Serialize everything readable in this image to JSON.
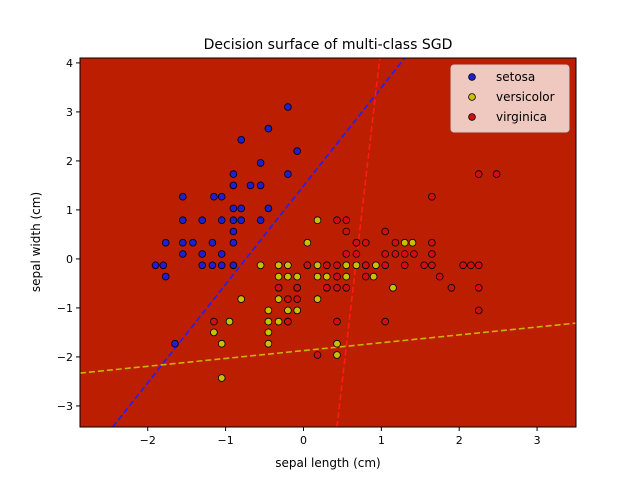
{
  "chart_data": {
    "type": "scatter",
    "title": "Decision surface of multi-class SGD",
    "xlabel": "sepal length (cm)",
    "ylabel": "sepal width (cm)",
    "xlim": [
      -2.87,
      3.5
    ],
    "ylim": [
      -3.43,
      4.1
    ],
    "xticks": [
      -2,
      -1,
      0,
      1,
      2,
      3
    ],
    "yticks": [
      -3,
      -2,
      -1,
      0,
      1,
      2,
      3,
      4
    ],
    "grid": false,
    "legend_position": "top-right",
    "region_colors": {
      "setosa": "#3b8fde",
      "versicolor": "#fca50a",
      "virginica": "#bb1e00"
    },
    "boundary_lines": [
      {
        "series": "setosa",
        "color": "#1f1fff",
        "points": [
          [
            -2.45,
            -3.43
          ],
          [
            1.3,
            4.1
          ]
        ]
      },
      {
        "series": "versicolor",
        "color": "#c8b400",
        "points": [
          [
            -2.87,
            -2.33
          ],
          [
            3.5,
            -1.31
          ]
        ]
      },
      {
        "series": "virginica",
        "color": "#ff1a1a",
        "points": [
          [
            0.43,
            -3.43
          ],
          [
            0.98,
            4.1
          ]
        ]
      }
    ],
    "series": [
      {
        "name": "setosa",
        "color": "#1f1fd0",
        "points": [
          [
            -1.9,
            -0.13
          ],
          [
            -1.8,
            -0.13
          ],
          [
            -1.77,
            0.33
          ],
          [
            -1.77,
            -0.36
          ],
          [
            -1.65,
            -1.73
          ],
          [
            -1.55,
            1.27
          ],
          [
            -1.55,
            0.79
          ],
          [
            -1.55,
            0.33
          ],
          [
            -1.55,
            0.1
          ],
          [
            -1.42,
            0.33
          ],
          [
            -1.3,
            0.79
          ],
          [
            -1.3,
            0.1
          ],
          [
            -1.3,
            -0.13
          ],
          [
            -1.17,
            0.33
          ],
          [
            -1.17,
            -0.13
          ],
          [
            -1.15,
            1.27
          ],
          [
            -1.05,
            1.27
          ],
          [
            -1.05,
            0.79
          ],
          [
            -1.05,
            0.1
          ],
          [
            -1.05,
            -0.13
          ],
          [
            -0.9,
            1.5
          ],
          [
            -0.9,
            1.03
          ],
          [
            -0.9,
            0.79
          ],
          [
            -0.9,
            0.56
          ],
          [
            -0.9,
            0.33
          ],
          [
            -0.9,
            -0.13
          ],
          [
            -0.9,
            1.73
          ],
          [
            -0.8,
            2.43
          ],
          [
            -0.8,
            1.03
          ],
          [
            -0.8,
            0.79
          ],
          [
            -0.68,
            1.5
          ],
          [
            -0.55,
            1.96
          ],
          [
            -0.55,
            1.5
          ],
          [
            -0.55,
            0.79
          ],
          [
            -0.45,
            2.66
          ],
          [
            -0.45,
            1.03
          ],
          [
            -0.2,
            3.1
          ],
          [
            -0.2,
            1.73
          ],
          [
            -0.08,
            2.2
          ]
        ]
      },
      {
        "name": "versicolor",
        "color": "#c8c000",
        "points": [
          [
            -1.15,
            -1.5
          ],
          [
            -1.05,
            -1.73
          ],
          [
            -1.05,
            -2.43
          ],
          [
            -0.95,
            -1.28
          ],
          [
            -0.8,
            -0.82
          ],
          [
            -0.55,
            -0.13
          ],
          [
            -0.45,
            -1.05
          ],
          [
            -0.45,
            -1.28
          ],
          [
            -0.45,
            -1.5
          ],
          [
            -0.45,
            -1.73
          ],
          [
            -0.32,
            -0.13
          ],
          [
            -0.32,
            -0.36
          ],
          [
            -0.32,
            -0.59
          ],
          [
            -0.32,
            -0.82
          ],
          [
            -0.32,
            -1.28
          ],
          [
            -0.2,
            -0.13
          ],
          [
            -0.2,
            -0.36
          ],
          [
            -0.2,
            -1.05
          ],
          [
            -0.2,
            -1.28
          ],
          [
            -0.08,
            -0.36
          ],
          [
            -0.08,
            -0.59
          ],
          [
            -0.08,
            -1.05
          ],
          [
            0.05,
            0.33
          ],
          [
            0.05,
            -0.13
          ],
          [
            0.18,
            0.79
          ],
          [
            0.18,
            -0.13
          ],
          [
            0.18,
            -0.36
          ],
          [
            0.18,
            -0.82
          ],
          [
            0.3,
            -0.36
          ],
          [
            0.3,
            -0.59
          ],
          [
            0.3,
            -0.13
          ],
          [
            0.43,
            -0.36
          ],
          [
            0.43,
            -1.73
          ],
          [
            0.43,
            -1.96
          ],
          [
            0.55,
            -0.13
          ],
          [
            0.55,
            -0.36
          ],
          [
            0.68,
            0.33
          ],
          [
            0.68,
            -0.13
          ],
          [
            0.8,
            -0.13
          ],
          [
            0.9,
            -0.36
          ],
          [
            0.93,
            -0.13
          ],
          [
            1.15,
            -0.59
          ],
          [
            1.3,
            0.33
          ],
          [
            1.4,
            0.33
          ]
        ]
      },
      {
        "name": "virginica",
        "color": "#d01010",
        "points": [
          [
            -1.15,
            -1.28
          ],
          [
            -0.32,
            -0.59
          ],
          [
            -0.2,
            -0.82
          ],
          [
            -0.2,
            -1.28
          ],
          [
            -0.08,
            -0.82
          ],
          [
            -0.08,
            -0.59
          ],
          [
            0.05,
            -0.13
          ],
          [
            0.18,
            -1.96
          ],
          [
            0.3,
            -0.13
          ],
          [
            0.3,
            -0.59
          ],
          [
            0.43,
            0.79
          ],
          [
            0.43,
            -0.13
          ],
          [
            0.43,
            -0.36
          ],
          [
            0.43,
            -0.59
          ],
          [
            0.43,
            -1.28
          ],
          [
            0.55,
            0.79
          ],
          [
            0.55,
            0.56
          ],
          [
            0.55,
            0.1
          ],
          [
            0.55,
            -0.59
          ],
          [
            0.68,
            0.1
          ],
          [
            0.68,
            0.33
          ],
          [
            0.8,
            0.33
          ],
          [
            0.8,
            -0.13
          ],
          [
            0.8,
            -0.36
          ],
          [
            1.05,
            0.56
          ],
          [
            1.05,
            0.1
          ],
          [
            1.05,
            -0.13
          ],
          [
            1.05,
            -1.28
          ],
          [
            1.18,
            0.33
          ],
          [
            1.18,
            0.1
          ],
          [
            1.3,
            0.1
          ],
          [
            1.3,
            -0.13
          ],
          [
            1.42,
            0.1
          ],
          [
            1.55,
            -0.13
          ],
          [
            1.65,
            1.27
          ],
          [
            1.65,
            0.33
          ],
          [
            1.65,
            -0.13
          ],
          [
            1.65,
            0.1
          ],
          [
            1.75,
            -0.36
          ],
          [
            1.9,
            -0.59
          ],
          [
            2.05,
            -0.13
          ],
          [
            2.15,
            -0.13
          ],
          [
            2.25,
            1.73
          ],
          [
            2.25,
            -0.13
          ],
          [
            2.25,
            -0.59
          ],
          [
            2.25,
            -1.05
          ],
          [
            2.48,
            1.73
          ]
        ]
      }
    ]
  }
}
